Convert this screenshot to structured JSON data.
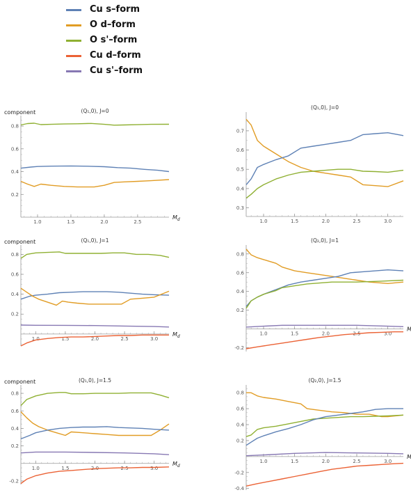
{
  "legend": [
    {
      "name": "Cu s–form",
      "color": "#5e81b5"
    },
    {
      "name": "O d–form",
      "color": "#e19c24"
    },
    {
      "name": "O s'–form",
      "color": "#8fb032"
    },
    {
      "name": "Cu d–form",
      "color": "#eb6235"
    },
    {
      "name": "Cu s'–form",
      "color": "#8778b3"
    }
  ],
  "chart_data": [
    {
      "type": "line",
      "title": "(Q₁,0), J=0",
      "ylabel": "component",
      "xlabel": "M",
      "xlabel_sub": "d",
      "xlim": [
        0.75,
        2.97
      ],
      "ylim": [
        0,
        0.88
      ],
      "xticks": [
        1.0,
        1.5,
        2.0,
        2.5
      ],
      "yticks": [
        0.2,
        0.4,
        0.6,
        0.8
      ],
      "series": [
        {
          "name": "O s'–form",
          "color": "#8fb032",
          "x": [
            0.75,
            0.85,
            0.95,
            1.05,
            1.2,
            1.4,
            1.6,
            1.8,
            2.0,
            2.15,
            2.3,
            2.5,
            2.7,
            2.97
          ],
          "y": [
            0.81,
            0.822,
            0.825,
            0.813,
            0.815,
            0.818,
            0.82,
            0.823,
            0.815,
            0.808,
            0.81,
            0.812,
            0.815,
            0.816
          ]
        },
        {
          "name": "Cu s–form",
          "color": "#5e81b5",
          "x": [
            0.75,
            0.9,
            1.0,
            1.2,
            1.5,
            1.8,
            2.0,
            2.2,
            2.4,
            2.6,
            2.8,
            2.97
          ],
          "y": [
            0.43,
            0.44,
            0.445,
            0.448,
            0.45,
            0.447,
            0.443,
            0.435,
            0.43,
            0.42,
            0.412,
            0.4
          ]
        },
        {
          "name": "O d–form",
          "color": "#e19c24",
          "x": [
            0.75,
            0.85,
            0.95,
            1.05,
            1.2,
            1.4,
            1.6,
            1.85,
            2.0,
            2.15,
            2.3,
            2.5,
            2.7,
            2.97
          ],
          "y": [
            0.315,
            0.29,
            0.27,
            0.29,
            0.28,
            0.27,
            0.265,
            0.265,
            0.28,
            0.305,
            0.31,
            0.315,
            0.32,
            0.33
          ]
        }
      ]
    },
    {
      "type": "line",
      "title": "(Q₁,0), J=0",
      "ylabel": "",
      "xlabel": "",
      "xlim": [
        0.72,
        3.25
      ],
      "ylim": [
        0.255,
        0.79
      ],
      "xticks": [
        1.0,
        1.5,
        2.0,
        2.5,
        3.0
      ],
      "yticks": [
        0.3,
        0.4,
        0.5,
        0.6,
        0.7
      ],
      "series": [
        {
          "name": "O d–form",
          "color": "#e19c24",
          "x": [
            0.72,
            0.8,
            0.9,
            1.0,
            1.2,
            1.4,
            1.6,
            1.8,
            2.0,
            2.2,
            2.4,
            2.6,
            2.8,
            3.0,
            3.25
          ],
          "y": [
            0.76,
            0.73,
            0.65,
            0.62,
            0.58,
            0.54,
            0.51,
            0.49,
            0.48,
            0.47,
            0.46,
            0.42,
            0.415,
            0.41,
            0.44
          ]
        },
        {
          "name": "Cu s–form",
          "color": "#5e81b5",
          "x": [
            0.72,
            0.8,
            0.9,
            1.0,
            1.2,
            1.4,
            1.6,
            1.8,
            2.0,
            2.2,
            2.4,
            2.6,
            2.8,
            3.0,
            3.25
          ],
          "y": [
            0.42,
            0.45,
            0.51,
            0.525,
            0.55,
            0.57,
            0.61,
            0.62,
            0.63,
            0.64,
            0.65,
            0.68,
            0.685,
            0.69,
            0.675
          ]
        },
        {
          "name": "O s'–form",
          "color": "#8fb032",
          "x": [
            0.72,
            0.8,
            0.9,
            1.0,
            1.2,
            1.4,
            1.6,
            1.8,
            2.0,
            2.2,
            2.4,
            2.6,
            2.8,
            3.0,
            3.25
          ],
          "y": [
            0.35,
            0.37,
            0.4,
            0.42,
            0.45,
            0.47,
            0.485,
            0.49,
            0.495,
            0.5,
            0.5,
            0.49,
            0.488,
            0.485,
            0.495
          ]
        }
      ]
    },
    {
      "type": "line",
      "title": "(Q₁,0), J=1",
      "ylabel": "component",
      "xlabel": "M",
      "xlabel_sub": "d",
      "xlim": [
        0.75,
        3.25
      ],
      "ylim": [
        -0.12,
        0.88
      ],
      "xticks": [
        1.0,
        1.5,
        2.0,
        2.5,
        3.0
      ],
      "yticks": [
        0.2,
        0.4,
        0.6,
        0.8
      ],
      "series": [
        {
          "name": "O s'–form",
          "color": "#8fb032",
          "x": [
            0.75,
            0.85,
            1.0,
            1.2,
            1.4,
            1.5,
            1.7,
            1.9,
            2.1,
            2.3,
            2.5,
            2.7,
            2.9,
            3.1,
            3.25
          ],
          "y": [
            0.76,
            0.8,
            0.815,
            0.82,
            0.825,
            0.81,
            0.81,
            0.81,
            0.81,
            0.815,
            0.815,
            0.8,
            0.8,
            0.79,
            0.77
          ]
        },
        {
          "name": "Cu s–form",
          "color": "#5e81b5",
          "x": [
            0.75,
            0.9,
            1.0,
            1.2,
            1.4,
            1.6,
            1.8,
            2.0,
            2.2,
            2.4,
            2.6,
            2.8,
            3.0,
            3.25
          ],
          "y": [
            0.35,
            0.38,
            0.39,
            0.4,
            0.415,
            0.42,
            0.425,
            0.425,
            0.425,
            0.42,
            0.41,
            0.4,
            0.395,
            0.39
          ]
        },
        {
          "name": "O d–form",
          "color": "#e19c24",
          "x": [
            0.75,
            0.85,
            0.95,
            1.05,
            1.2,
            1.35,
            1.45,
            1.55,
            1.7,
            1.9,
            2.1,
            2.3,
            2.45,
            2.6,
            2.8,
            3.0,
            3.25
          ],
          "y": [
            0.46,
            0.42,
            0.38,
            0.35,
            0.32,
            0.29,
            0.33,
            0.32,
            0.31,
            0.3,
            0.3,
            0.3,
            0.3,
            0.35,
            0.36,
            0.37,
            0.43
          ]
        },
        {
          "name": "Cu s'–form",
          "color": "#8778b3",
          "x": [
            0.75,
            1.0,
            1.5,
            2.0,
            2.5,
            3.0,
            3.25
          ],
          "y": [
            0.09,
            0.088,
            0.087,
            0.085,
            0.08,
            0.075,
            0.07
          ]
        },
        {
          "name": "Cu d–form",
          "color": "#eb6235",
          "x": [
            0.75,
            0.85,
            1.0,
            1.2,
            1.4,
            1.6,
            1.8,
            2.0,
            2.2,
            2.4,
            2.6,
            2.8,
            3.0,
            3.25
          ],
          "y": [
            -0.12,
            -0.09,
            -0.06,
            -0.045,
            -0.035,
            -0.03,
            -0.03,
            -0.025,
            -0.02,
            -0.015,
            -0.015,
            -0.01,
            -0.01,
            -0.01
          ]
        }
      ]
    },
    {
      "type": "line",
      "title": "(Q₂,0), J=1",
      "ylabel": "",
      "xlabel": "M",
      "xlabel_sub": "d",
      "xlim": [
        0.72,
        3.25
      ],
      "ylim": [
        -0.24,
        0.88
      ],
      "xticks": [
        1.0,
        1.5,
        2.0,
        2.5,
        3.0
      ],
      "yticks": [
        -0.2,
        0.2,
        0.4,
        0.6,
        0.8
      ],
      "series": [
        {
          "name": "O d–form",
          "color": "#e19c24",
          "x": [
            0.72,
            0.8,
            0.9,
            1.0,
            1.2,
            1.3,
            1.5,
            1.7,
            1.9,
            2.1,
            2.3,
            2.5,
            2.7,
            2.9,
            3.0,
            3.25
          ],
          "y": [
            0.85,
            0.79,
            0.76,
            0.74,
            0.7,
            0.66,
            0.62,
            0.6,
            0.58,
            0.56,
            0.54,
            0.52,
            0.5,
            0.49,
            0.485,
            0.5
          ]
        },
        {
          "name": "Cu s–form",
          "color": "#5e81b5",
          "x": [
            0.72,
            0.8,
            0.9,
            1.0,
            1.2,
            1.4,
            1.6,
            1.8,
            2.0,
            2.2,
            2.4,
            2.6,
            2.8,
            3.0,
            3.25
          ],
          "y": [
            0.24,
            0.3,
            0.34,
            0.37,
            0.42,
            0.47,
            0.5,
            0.52,
            0.54,
            0.56,
            0.6,
            0.61,
            0.62,
            0.63,
            0.62
          ]
        },
        {
          "name": "O s'–form",
          "color": "#8fb032",
          "x": [
            0.72,
            0.8,
            0.9,
            1.0,
            1.2,
            1.3,
            1.5,
            1.7,
            1.9,
            2.1,
            2.3,
            2.5,
            2.7,
            2.9,
            3.25
          ],
          "y": [
            0.22,
            0.3,
            0.34,
            0.37,
            0.41,
            0.44,
            0.46,
            0.48,
            0.49,
            0.5,
            0.5,
            0.5,
            0.505,
            0.51,
            0.52
          ]
        },
        {
          "name": "Cu s'–form",
          "color": "#8778b3",
          "x": [
            0.72,
            1.0,
            1.3,
            1.6,
            2.0,
            2.5,
            3.0,
            3.25
          ],
          "y": [
            0.02,
            0.03,
            0.04,
            0.04,
            0.04,
            0.04,
            0.03,
            0.025
          ]
        },
        {
          "name": "Cu d–form",
          "color": "#eb6235",
          "x": [
            0.72,
            0.9,
            1.1,
            1.3,
            1.5,
            1.7,
            1.9,
            2.1,
            2.3,
            2.5,
            2.7,
            2.9,
            3.1,
            3.25
          ],
          "y": [
            -0.21,
            -0.19,
            -0.17,
            -0.15,
            -0.13,
            -0.11,
            -0.09,
            -0.075,
            -0.06,
            -0.05,
            -0.04,
            -0.035,
            -0.03,
            -0.03
          ]
        }
      ]
    },
    {
      "type": "line",
      "title": "(Q₁,0), J=1.5",
      "ylabel": "component",
      "xlabel": "M",
      "xlabel_sub": "d",
      "xlim": [
        0.75,
        3.25
      ],
      "ylim": [
        -0.24,
        0.88
      ],
      "xticks": [
        1.0,
        1.5,
        2.0,
        2.5,
        3.0
      ],
      "yticks": [
        -0.2,
        0.2,
        0.4,
        0.6,
        0.8
      ],
      "series": [
        {
          "name": "O s'–form",
          "color": "#8fb032",
          "x": [
            0.75,
            0.85,
            1.0,
            1.2,
            1.4,
            1.5,
            1.6,
            1.8,
            2.0,
            2.2,
            2.4,
            2.6,
            2.8,
            2.95,
            3.1,
            3.25
          ],
          "y": [
            0.66,
            0.73,
            0.77,
            0.8,
            0.81,
            0.81,
            0.795,
            0.795,
            0.8,
            0.8,
            0.8,
            0.805,
            0.805,
            0.805,
            0.78,
            0.75
          ]
        },
        {
          "name": "O d–form",
          "color": "#e19c24",
          "x": [
            0.75,
            0.85,
            0.95,
            1.05,
            1.2,
            1.35,
            1.5,
            1.6,
            1.8,
            2.0,
            2.2,
            2.4,
            2.6,
            2.8,
            2.95,
            3.1,
            3.25
          ],
          "y": [
            0.59,
            0.52,
            0.46,
            0.42,
            0.38,
            0.35,
            0.32,
            0.36,
            0.35,
            0.34,
            0.33,
            0.32,
            0.32,
            0.32,
            0.32,
            0.38,
            0.45
          ]
        },
        {
          "name": "Cu s–form",
          "color": "#5e81b5",
          "x": [
            0.75,
            0.9,
            1.0,
            1.2,
            1.4,
            1.6,
            1.8,
            2.0,
            2.2,
            2.4,
            2.6,
            2.8,
            3.0,
            3.25
          ],
          "y": [
            0.28,
            0.32,
            0.35,
            0.38,
            0.4,
            0.41,
            0.415,
            0.415,
            0.42,
            0.41,
            0.405,
            0.4,
            0.39,
            0.38
          ]
        },
        {
          "name": "Cu s'–form",
          "color": "#8778b3",
          "x": [
            0.75,
            1.0,
            1.5,
            2.0,
            2.5,
            3.0,
            3.25
          ],
          "y": [
            0.12,
            0.13,
            0.13,
            0.125,
            0.12,
            0.11,
            0.1
          ]
        },
        {
          "name": "Cu d–form",
          "color": "#eb6235",
          "x": [
            0.75,
            0.85,
            1.0,
            1.2,
            1.4,
            1.6,
            1.8,
            2.0,
            2.2,
            2.4,
            2.6,
            2.8,
            3.0,
            3.25
          ],
          "y": [
            -0.23,
            -0.18,
            -0.14,
            -0.11,
            -0.09,
            -0.08,
            -0.07,
            -0.06,
            -0.055,
            -0.05,
            -0.05,
            -0.045,
            -0.045,
            -0.04
          ]
        }
      ]
    },
    {
      "type": "line",
      "title": "(Q₂,0), J=1.5",
      "ylabel": "",
      "xlabel": "M",
      "xlabel_sub": "d",
      "xlim": [
        0.72,
        3.25
      ],
      "ylim": [
        -0.42,
        0.88
      ],
      "xticks": [
        1.0,
        1.5,
        2.0,
        2.5,
        3.0
      ],
      "yticks": [
        -0.4,
        -0.2,
        0.2,
        0.4,
        0.6,
        0.8
      ],
      "series": [
        {
          "name": "O d–form",
          "color": "#e19c24",
          "x": [
            0.72,
            0.8,
            0.9,
            1.0,
            1.2,
            1.4,
            1.6,
            1.7,
            1.9,
            2.1,
            2.3,
            2.5,
            2.7,
            2.9,
            3.0,
            3.25
          ],
          "y": [
            0.8,
            0.8,
            0.76,
            0.74,
            0.72,
            0.69,
            0.66,
            0.6,
            0.58,
            0.56,
            0.55,
            0.53,
            0.53,
            0.5,
            0.5,
            0.52
          ]
        },
        {
          "name": "O s'–form",
          "color": "#8fb032",
          "x": [
            0.72,
            0.8,
            0.9,
            1.0,
            1.2,
            1.4,
            1.6,
            1.8,
            2.0,
            2.2,
            2.4,
            2.6,
            2.8,
            3.0,
            3.25
          ],
          "y": [
            0.25,
            0.27,
            0.34,
            0.36,
            0.38,
            0.41,
            0.44,
            0.47,
            0.48,
            0.49,
            0.5,
            0.5,
            0.505,
            0.51,
            0.52
          ]
        },
        {
          "name": "Cu s–form",
          "color": "#5e81b5",
          "x": [
            0.72,
            0.8,
            0.9,
            1.0,
            1.2,
            1.4,
            1.6,
            1.8,
            2.0,
            2.2,
            2.4,
            2.6,
            2.8,
            3.0,
            3.25
          ],
          "y": [
            0.14,
            0.18,
            0.23,
            0.26,
            0.31,
            0.35,
            0.4,
            0.46,
            0.5,
            0.52,
            0.54,
            0.56,
            0.59,
            0.6,
            0.6
          ]
        },
        {
          "name": "Cu s'–form",
          "color": "#8778b3",
          "x": [
            0.72,
            1.0,
            1.5,
            2.0,
            2.5,
            3.0,
            3.25
          ],
          "y": [
            0.01,
            0.02,
            0.04,
            0.05,
            0.045,
            0.04,
            0.035
          ]
        },
        {
          "name": "Cu d–form",
          "color": "#eb6235",
          "x": [
            0.72,
            0.9,
            1.1,
            1.3,
            1.5,
            1.7,
            1.9,
            2.1,
            2.3,
            2.5,
            2.7,
            2.9,
            3.1,
            3.25
          ],
          "y": [
            -0.37,
            -0.34,
            -0.31,
            -0.28,
            -0.25,
            -0.22,
            -0.19,
            -0.16,
            -0.14,
            -0.12,
            -0.11,
            -0.1,
            -0.09,
            -0.085
          ]
        }
      ]
    }
  ]
}
